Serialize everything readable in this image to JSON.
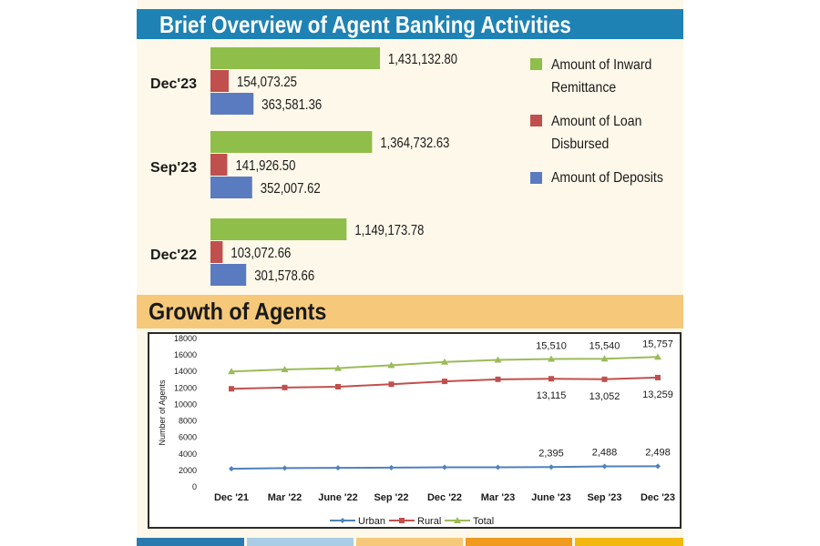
{
  "titles": {
    "overview": "Brief Overview of Agent Banking Activities",
    "growth": "Growth of Agents"
  },
  "colors": {
    "header_blue": "#1e82b4",
    "header_orange": "#f6c97a",
    "panel_bg": "#fdf8e9",
    "inward": "#8fbe4b",
    "loan": "#c0504d",
    "deposits": "#5b7bc0",
    "urban": "#4f81bd",
    "rural": "#c0504d",
    "total": "#9bbb59"
  },
  "decor_strips": [
    "#2a7ab0",
    "#a9cde4",
    "#f6c97a",
    "#f09a1f",
    "#f2b810"
  ],
  "chart_data": [
    {
      "type": "bar",
      "orientation": "horizontal",
      "categories": [
        "Dec'23",
        "Sep'23",
        "Dec'22"
      ],
      "series": [
        {
          "name": "Amount of Inward Remittance",
          "values": [
            1431132.8,
            1364732.63,
            1149173.78
          ],
          "labels": [
            "1,431,132.80",
            "1,364,732.63",
            "1,149,173.78"
          ]
        },
        {
          "name": "Amount of Loan Disbursed",
          "values": [
            154073.25,
            141926.5,
            103072.66
          ],
          "labels": [
            "154,073.25",
            "141,926.50",
            "103,072.66"
          ]
        },
        {
          "name": "Amount of Deposits",
          "values": [
            363581.36,
            352007.62,
            301578.66
          ],
          "labels": [
            "363,581.36",
            "352,007.62",
            "301,578.66"
          ]
        }
      ],
      "legend": [
        "Amount of Inward",
        "Remittance",
        "Amount of Loan",
        "Disbursed",
        "Amount of Deposits"
      ]
    },
    {
      "type": "line",
      "x": [
        "Dec '21",
        "Mar '22",
        "June '22",
        "Sep '22",
        "Dec '22",
        "Mar '23",
        "June '23",
        "Sep '23",
        "Dec '23"
      ],
      "ylabel": "Number of Agents",
      "ylim": [
        0,
        18000
      ],
      "yticks": [
        0,
        2000,
        4000,
        6000,
        8000,
        10000,
        12000,
        14000,
        16000,
        18000
      ],
      "series": [
        {
          "name": "Urban",
          "values": [
            2200,
            2280,
            2300,
            2330,
            2370,
            2380,
            2395,
            2488,
            2498
          ],
          "labels": [
            "",
            "",
            "",
            "",
            "",
            "",
            "2,395",
            "2,488",
            "2,498"
          ]
        },
        {
          "name": "Rural",
          "values": [
            11900,
            12050,
            12150,
            12450,
            12800,
            13050,
            13115,
            13052,
            13259
          ],
          "labels": [
            "",
            "",
            "",
            "",
            "",
            "",
            "13,115",
            "13,052",
            "13,259"
          ]
        },
        {
          "name": "Total",
          "values": [
            14000,
            14250,
            14400,
            14750,
            15150,
            15400,
            15510,
            15540,
            15757
          ],
          "labels": [
            "",
            "",
            "",
            "",
            "",
            "",
            "15,510",
            "15,540",
            "15,757"
          ]
        }
      ],
      "legend_position": "bottom",
      "grid": false
    }
  ]
}
